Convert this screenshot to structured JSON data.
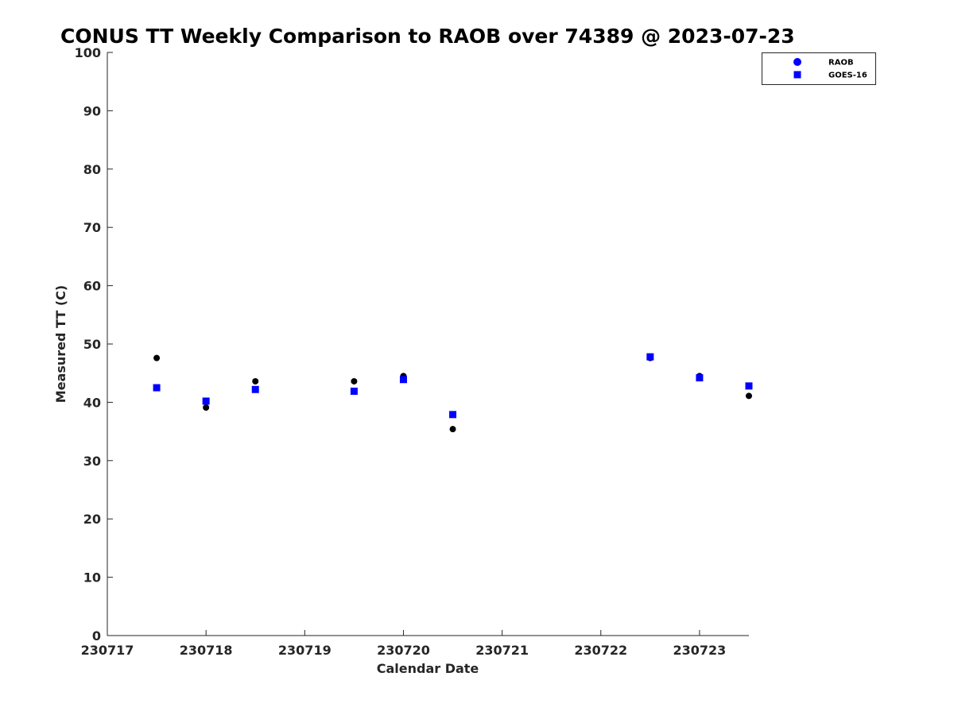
{
  "chart_data": {
    "type": "scatter",
    "title": "CONUS TT Weekly Comparison to RAOB over 74389 @ 2023-07-23",
    "xlabel": "Calendar Date",
    "ylabel": "Measured TT (C)",
    "xlim": [
      "2023-07-17T00:00",
      "2023-07-23T12:00"
    ],
    "ylim": [
      0,
      100
    ],
    "x_ticks": [
      "230717",
      "230718",
      "230719",
      "230720",
      "230721",
      "230722",
      "230723"
    ],
    "y_ticks": [
      "0",
      "10",
      "20",
      "30",
      "40",
      "50",
      "60",
      "70",
      "80",
      "90",
      "100"
    ],
    "grid": false,
    "legend_position": "top-right",
    "series": [
      {
        "name": "RAOB",
        "marker": "circle",
        "color": "#000000",
        "legend_color": "#0000ff",
        "points": [
          {
            "x": "2023-07-17T12:00",
            "y": 47.6
          },
          {
            "x": "2023-07-18T00:00",
            "y": 39.1
          },
          {
            "x": "2023-07-18T12:00",
            "y": 43.6
          },
          {
            "x": "2023-07-19T12:00",
            "y": 43.6
          },
          {
            "x": "2023-07-20T00:00",
            "y": 44.5
          },
          {
            "x": "2023-07-20T12:00",
            "y": 35.4
          },
          {
            "x": "2023-07-22T12:00",
            "y": 47.6
          },
          {
            "x": "2023-07-23T00:00",
            "y": 44.5
          },
          {
            "x": "2023-07-23T12:00",
            "y": 41.1
          }
        ]
      },
      {
        "name": "GOES-16",
        "marker": "square",
        "color": "#0000ff",
        "points": [
          {
            "x": "2023-07-17T12:00",
            "y": 42.5
          },
          {
            "x": "2023-07-18T00:00",
            "y": 40.2
          },
          {
            "x": "2023-07-18T12:00",
            "y": 42.2
          },
          {
            "x": "2023-07-19T12:00",
            "y": 41.9
          },
          {
            "x": "2023-07-20T00:00",
            "y": 43.9
          },
          {
            "x": "2023-07-20T12:00",
            "y": 37.9
          },
          {
            "x": "2023-07-22T12:00",
            "y": 47.8
          },
          {
            "x": "2023-07-23T00:00",
            "y": 44.2
          },
          {
            "x": "2023-07-23T12:00",
            "y": 42.8
          }
        ]
      }
    ]
  }
}
